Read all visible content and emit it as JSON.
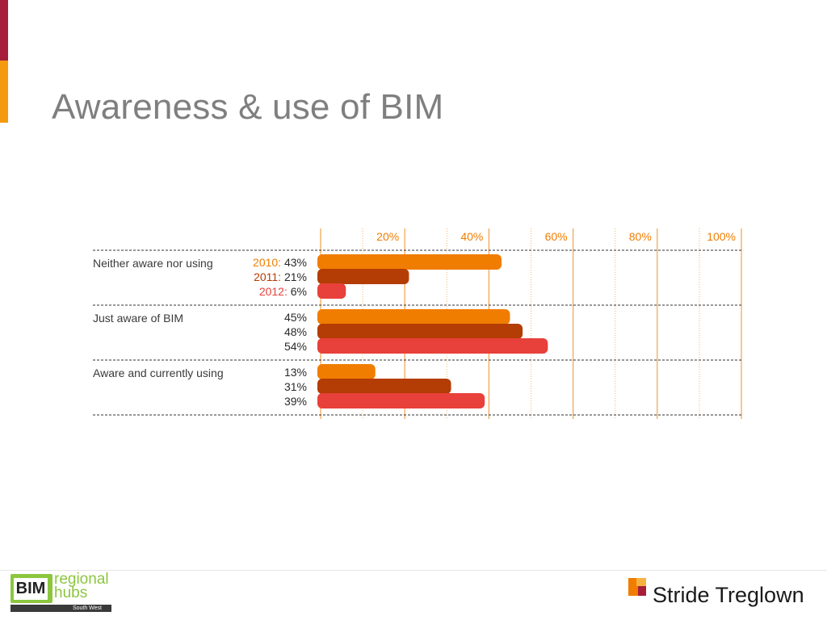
{
  "slide": {
    "title": "Awareness & use of BIM",
    "accent_colors": [
      "#a61e3a",
      "#f59a0f"
    ]
  },
  "chart_data": {
    "type": "bar",
    "orientation": "horizontal",
    "title": "",
    "categories": [
      "Neither aware nor using",
      "Just aware of BIM",
      "Aware and currently using"
    ],
    "series": [
      {
        "name": "2010",
        "color": "#f07d00",
        "values": [
          43,
          45,
          13
        ]
      },
      {
        "name": "2011",
        "color": "#b43c05",
        "values": [
          21,
          48,
          31
        ]
      },
      {
        "name": "2012",
        "color": "#e8403a",
        "values": [
          6,
          54,
          39
        ]
      }
    ],
    "x_ticks": [
      "20%",
      "40%",
      "60%",
      "80%",
      "100%"
    ],
    "xlim": [
      0,
      100
    ],
    "unit": "%",
    "gridlines": true,
    "legend": "inline labels on first group"
  },
  "footer": {
    "bim_logo": {
      "box_text": "BIM",
      "line1": "regional",
      "line2": "hubs",
      "region": "South West"
    },
    "partner_logo": {
      "name": "Stride Treglown",
      "colors": [
        "#f07d00",
        "#a61e3a"
      ]
    }
  }
}
